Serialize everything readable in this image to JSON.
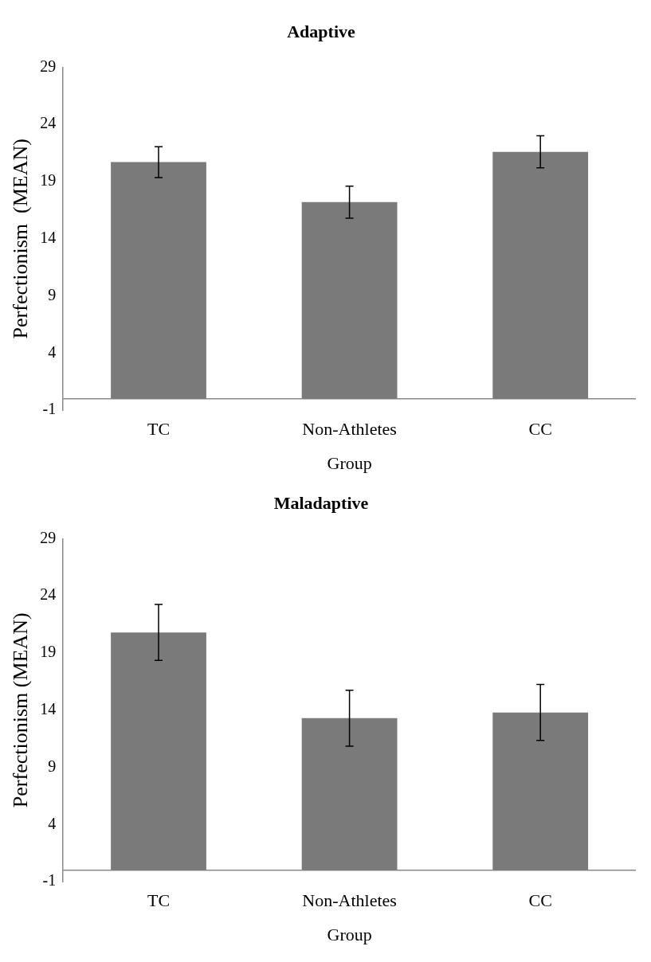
{
  "chart_data": [
    {
      "type": "bar",
      "title": "Adaptive",
      "xlabel": "Group",
      "ylabel": "Perfectionism  (MEAN)",
      "categories": [
        "TC",
        "Non-Athletes",
        "CC"
      ],
      "values": [
        20.7,
        17.2,
        21.6
      ],
      "errors": [
        1.35,
        1.4,
        1.4
      ],
      "color": "#7a7a7a",
      "ylim": [
        -1,
        29
      ],
      "yticks": [
        -1,
        4,
        9,
        14,
        19,
        24,
        29
      ],
      "grid": false,
      "legend": false
    },
    {
      "type": "bar",
      "title": "Maladaptive",
      "xlabel": "Group",
      "ylabel": "Perfectionism (MEAN)",
      "categories": [
        "TC",
        "Non-Athletes",
        "CC"
      ],
      "values": [
        20.8,
        13.3,
        13.8
      ],
      "errors": [
        2.45,
        2.45,
        2.45
      ],
      "color": "#7a7a7a",
      "ylim": [
        -1,
        29
      ],
      "yticks": [
        -1,
        4,
        9,
        14,
        19,
        24,
        29
      ],
      "grid": false,
      "legend": false
    }
  ]
}
